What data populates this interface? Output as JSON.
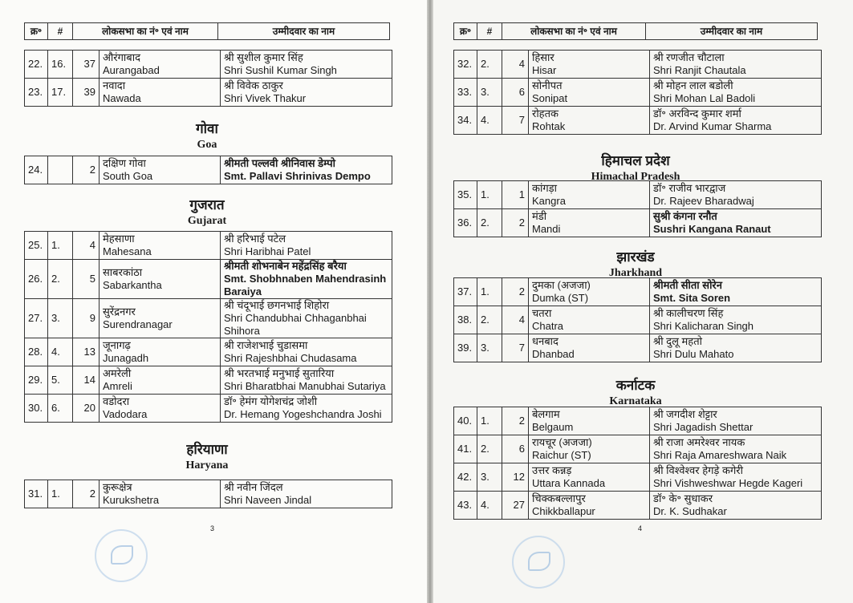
{
  "header": {
    "col_sr": "क्र॰",
    "col_hash": "#",
    "col_constituency": "लोकसभा का नं॰ एवं नाम",
    "col_candidate": "उम्मीदवार का नाम"
  },
  "pages": [
    {
      "number": "3",
      "sections": [
        {
          "hi": "",
          "en": "",
          "rows": [
            {
              "sr": "22.",
              "n": "16.",
              "no": "37",
              "c_hi": "औरंगाबाद",
              "c_en": "Aurangabad",
              "p_hi": "श्री सुशील कुमार सिंह",
              "p_en": "Shri Sushil Kumar Singh",
              "bold": false
            },
            {
              "sr": "23.",
              "n": "17.",
              "no": "39",
              "c_hi": "नवादा",
              "c_en": "Nawada",
              "p_hi": "श्री विवेक ठाकुर",
              "p_en": "Shri Vivek Thakur",
              "bold": false
            }
          ]
        },
        {
          "hi": "गोवा",
          "en": "Goa",
          "rows": [
            {
              "sr": "24.",
              "n": "",
              "no": "2",
              "c_hi": "दक्षिण गोवा",
              "c_en": "South Goa",
              "p_hi": "श्रीमती पल्लवी श्रीनिवास डेम्पो",
              "p_en": "Smt. Pallavi Shrinivas Dempo",
              "bold": true
            }
          ]
        },
        {
          "hi": "गुजरात",
          "en": "Gujarat",
          "rows": [
            {
              "sr": "25.",
              "n": "1.",
              "no": "4",
              "c_hi": "मेहसाणा",
              "c_en": "Mahesana",
              "p_hi": "श्री हरिभाई पटेल",
              "p_en": "Shri Haribhai Patel",
              "bold": false
            },
            {
              "sr": "26.",
              "n": "2.",
              "no": "5",
              "c_hi": "साबरकांठा",
              "c_en": "Sabarkantha",
              "p_hi": "श्रीमती शोभनाबेन महेंद्रसिंह बरैया",
              "p_en": "Smt. Shobhnaben Mahendrasinh Baraiya",
              "bold": true
            },
            {
              "sr": "27.",
              "n": "3.",
              "no": "9",
              "c_hi": "सुरेंद्रनगर",
              "c_en": "Surendranagar",
              "p_hi": "श्री चंदूभाई छगनभाई शिहोरा",
              "p_en": "Shri Chandubhai Chhaganbhai Shihora",
              "bold": false
            },
            {
              "sr": "28.",
              "n": "4.",
              "no": "13",
              "c_hi": "जूनागढ़",
              "c_en": "Junagadh",
              "p_hi": "श्री राजेशभाई चुडासमा",
              "p_en": "Shri Rajeshbhai Chudasama",
              "bold": false
            },
            {
              "sr": "29.",
              "n": "5.",
              "no": "14",
              "c_hi": "अमरेली",
              "c_en": "Amreli",
              "p_hi": "श्री भरतभाई मनुभाई सुतारिया",
              "p_en": "Shri Bharatbhai Manubhai Sutariya",
              "bold": false
            },
            {
              "sr": "30.",
              "n": "6.",
              "no": "20",
              "c_hi": "वडोदरा",
              "c_en": "Vadodara",
              "p_hi": "डॉ॰ हेमंग योगेशचंद्र जोशी",
              "p_en": "Dr. Hemang Yogeshchandra Joshi",
              "bold": false
            }
          ]
        },
        {
          "hi": "हरियाणा",
          "en": "Haryana",
          "rows": [
            {
              "sr": "31.",
              "n": "1.",
              "no": "2",
              "c_hi": "कुरूक्षेत्र",
              "c_en": "Kurukshetra",
              "p_hi": "श्री नवीन जिंदल",
              "p_en": "Shri Naveen Jindal",
              "bold": false
            }
          ]
        }
      ]
    },
    {
      "number": "4",
      "sections": [
        {
          "hi": "",
          "en": "",
          "rows": [
            {
              "sr": "32.",
              "n": "2.",
              "no": "4",
              "c_hi": "हिसार",
              "c_en": "Hisar",
              "p_hi": "श्री रणजीत चौटाला",
              "p_en": "Shri Ranjit Chautala",
              "bold": false
            },
            {
              "sr": "33.",
              "n": "3.",
              "no": "6",
              "c_hi": "सोनीपत",
              "c_en": "Sonipat",
              "p_hi": "श्री मोहन लाल बडोली",
              "p_en": "Shri Mohan Lal Badoli",
              "bold": false
            },
            {
              "sr": "34.",
              "n": "4.",
              "no": "7",
              "c_hi": "रोहतक",
              "c_en": "Rohtak",
              "p_hi": "डॉ॰ अरविन्द कुमार शर्मा",
              "p_en": "Dr. Arvind Kumar Sharma",
              "bold": false
            }
          ]
        },
        {
          "hi": "हिमाचल प्रदेश",
          "en": "Himachal Pradesh",
          "rows": [
            {
              "sr": "35.",
              "n": "1.",
              "no": "1",
              "c_hi": "कांगड़ा",
              "c_en": "Kangra",
              "p_hi": "डॉ॰ राजीव भारद्वाज",
              "p_en": "Dr. Rajeev Bharadwaj",
              "bold": false
            },
            {
              "sr": "36.",
              "n": "2.",
              "no": "2",
              "c_hi": "मंडी",
              "c_en": "Mandi",
              "p_hi": "सुश्री कंगना रनौत",
              "p_en": "Sushri Kangana Ranaut",
              "bold": true
            }
          ]
        },
        {
          "hi": "झारखंड",
          "en": "Jharkhand",
          "rows": [
            {
              "sr": "37.",
              "n": "1.",
              "no": "2",
              "c_hi": "दुमका (अजजा)",
              "c_en": "Dumka (ST)",
              "p_hi": "श्रीमती सीता सोरेन",
              "p_en": "Smt. Sita Soren",
              "bold": true
            },
            {
              "sr": "38.",
              "n": "2.",
              "no": "4",
              "c_hi": "चतरा",
              "c_en": "Chatra",
              "p_hi": "श्री कालीचरण सिंह",
              "p_en": "Shri Kalicharan Singh",
              "bold": false
            },
            {
              "sr": "39.",
              "n": "3.",
              "no": "7",
              "c_hi": "धनबाद",
              "c_en": "Dhanbad",
              "p_hi": "श्री दुलू महतो",
              "p_en": "Shri Dulu Mahato",
              "bold": false
            }
          ]
        },
        {
          "hi": "कर्नाटक",
          "en": "Karnataka",
          "rows": [
            {
              "sr": "40.",
              "n": "1.",
              "no": "2",
              "c_hi": "बेलगाम",
              "c_en": "Belgaum",
              "p_hi": "श्री जगदीश शेट्टार",
              "p_en": "Shri Jagadish Shettar",
              "bold": false
            },
            {
              "sr": "41.",
              "n": "2.",
              "no": "6",
              "c_hi": "रायचूर (अजजा)",
              "c_en": "Raichur (ST)",
              "p_hi": "श्री राजा अमरेश्वर नायक",
              "p_en": "Shri Raja Amareshwara Naik",
              "bold": false
            },
            {
              "sr": "42.",
              "n": "3.",
              "no": "12",
              "c_hi": "उत्तर कन्नड़",
              "c_en": "Uttara Kannada",
              "p_hi": "श्री विश्वेश्वर हेगड़े कगेरी",
              "p_en": "Shri Vishweshwar Hegde Kageri",
              "bold": false
            },
            {
              "sr": "43.",
              "n": "4.",
              "no": "27",
              "c_hi": "चिक्कबल्लापुर",
              "c_en": "Chikkballapur",
              "p_hi": "डॉ॰ के॰ सुधाकर",
              "p_en": "Dr. K. Sudhakar",
              "bold": false
            }
          ]
        }
      ]
    }
  ]
}
